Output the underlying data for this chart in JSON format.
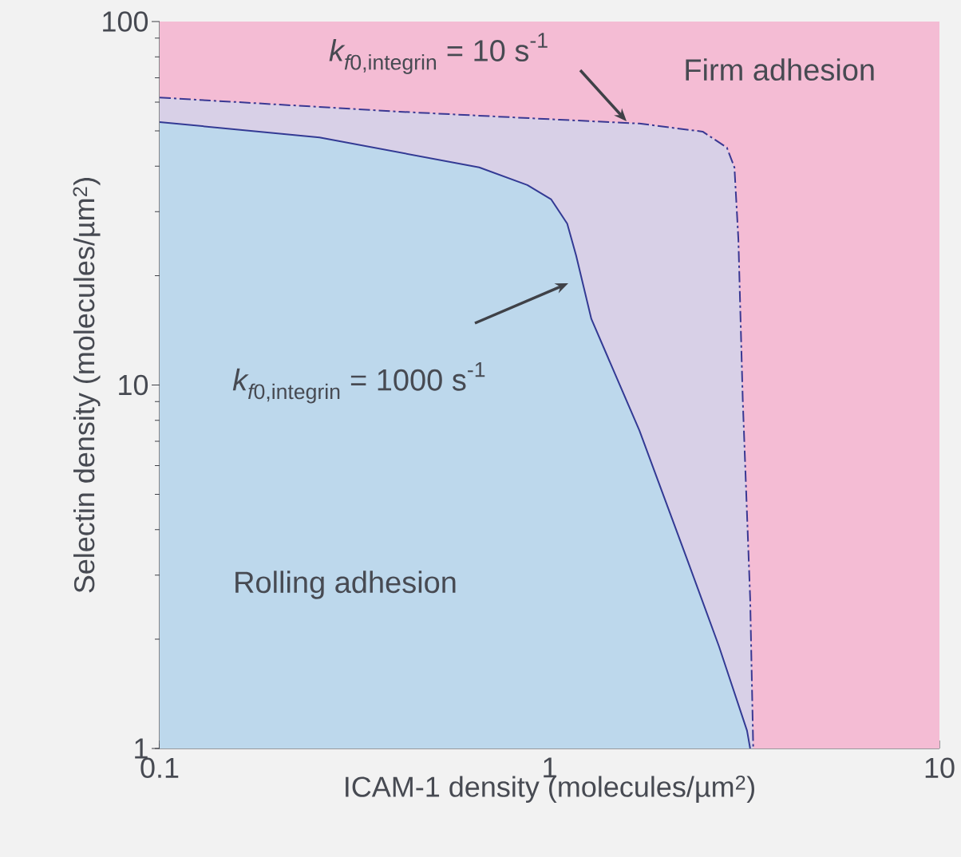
{
  "chart_data": {
    "type": "area",
    "xlabel": "ICAM-1 density (molecules/µm$^{2}$)",
    "ylabel": "Selectin density (molecules/µm$^{2}$)",
    "log": "xy",
    "xlim": [
      0.1,
      10
    ],
    "ylim": [
      1,
      100
    ],
    "xticks": [
      0.1,
      1,
      10
    ],
    "yticks": [
      1,
      10,
      100
    ],
    "grid": false,
    "bands": [
      {
        "axis": "y",
        "from": 1,
        "to": 100,
        "color": "#f4bcd4"
      }
    ],
    "series": [
      {
        "color": "#d8d0e7",
        "line_style": "dashed",
        "x": [
          0.1,
          0.412,
          1.06,
          1.7,
          2.47,
          2.85,
          2.98,
          3.05,
          3.13,
          3.27,
          3.33
        ],
        "values": [
          61.8,
          56.5,
          53.7,
          52.4,
          49.8,
          45,
          39.7,
          25.2,
          9.1,
          2.59,
          1
        ]
      },
      {
        "color": "#bdd8ec",
        "line_style": "solid",
        "x": [
          0.1,
          0.257,
          0.66,
          0.877,
          1.01,
          1.11,
          1.17,
          1.28,
          1.7,
          2.25,
          2.72,
          3.21,
          3.27
        ],
        "values": [
          52.9,
          48,
          39.7,
          35.5,
          32.4,
          27.8,
          22.7,
          15.2,
          7.5,
          3.33,
          1.91,
          1.12,
          1
        ]
      }
    ],
    "annotations": [
      "\\textit{k}_{\\textit{f}\\text{0,integrin}}\\text{ = 10 s}^{\\text{-1}}",
      "\\textit{k}_{\\textit{f}\\text{0,integrin}}\\text{ = 1000 s}^{\\text{-1}}",
      "Firm adhesion",
      "Rolling adhesion"
    ]
  }
}
